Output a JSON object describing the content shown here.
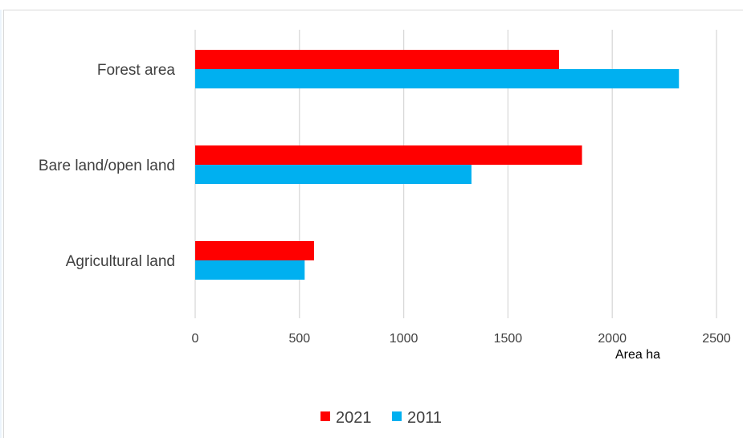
{
  "chart_data": {
    "type": "bar",
    "orientation": "horizontal",
    "categories": [
      "Forest area",
      "Bare land/open land",
      "Agricultural land"
    ],
    "series": [
      {
        "name": "2021",
        "color": "#ff0000",
        "values": [
          1745,
          1855,
          570
        ]
      },
      {
        "name": "2011",
        "color": "#00b0f0",
        "values": [
          2320,
          1325,
          525
        ]
      }
    ],
    "xlabel": "Area ha",
    "ylabel": "",
    "xlim": [
      0,
      2500
    ],
    "x_ticks": [
      "0",
      "500",
      "1000",
      "1500",
      "2000",
      "2500"
    ],
    "x_tick_values": [
      0,
      500,
      1000,
      1500,
      2000,
      2500
    ],
    "grid": "vertical",
    "legend_position": "bottom"
  }
}
